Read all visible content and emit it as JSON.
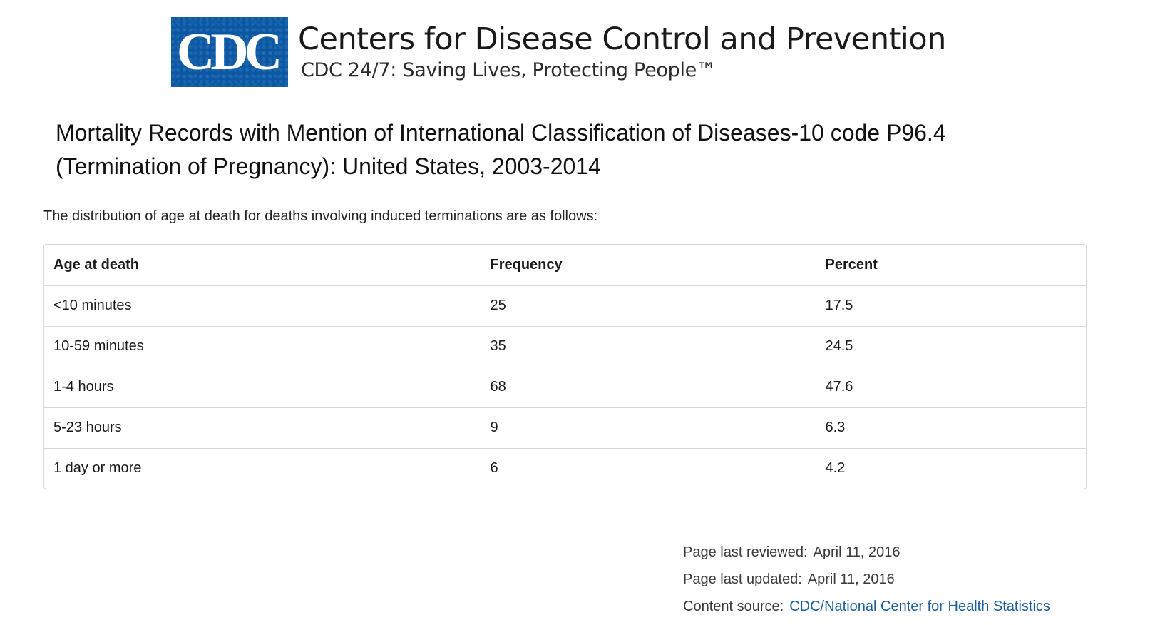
{
  "masthead": {
    "logo_text": "CDC",
    "agency_name": "Centers for Disease Control and Prevention",
    "tagline": "CDC 24/7: Saving Lives, Protecting People™",
    "logo_color": "#0a57a4"
  },
  "page_title": "Mortality Records with Mention of International Classification of Diseases-10 code P96.4 (Termination of Pregnancy): United States, 2003-2014",
  "intro_text": "The distribution of age at death for deaths involving induced terminations are as follows:",
  "table": {
    "headers": [
      "Age at death",
      "Frequency",
      "Percent"
    ],
    "rows": [
      [
        "<10 minutes",
        "25",
        "17.5"
      ],
      [
        "10-59 minutes",
        "35",
        "24.5"
      ],
      [
        "1-4 hours",
        "68",
        "47.6"
      ],
      [
        "5-23 hours",
        "9",
        "6.3"
      ],
      [
        "1 day or more",
        "6",
        "4.2"
      ]
    ]
  },
  "footer_meta": {
    "reviewed_label": "Page last reviewed:",
    "reviewed_date": "April 11, 2016",
    "updated_label": "Page last updated:",
    "updated_date": "April 11, 2016",
    "source_label": "Content source:",
    "source_link": "CDC/National Center for Health Statistics",
    "link_color": "#1b5e9e"
  }
}
